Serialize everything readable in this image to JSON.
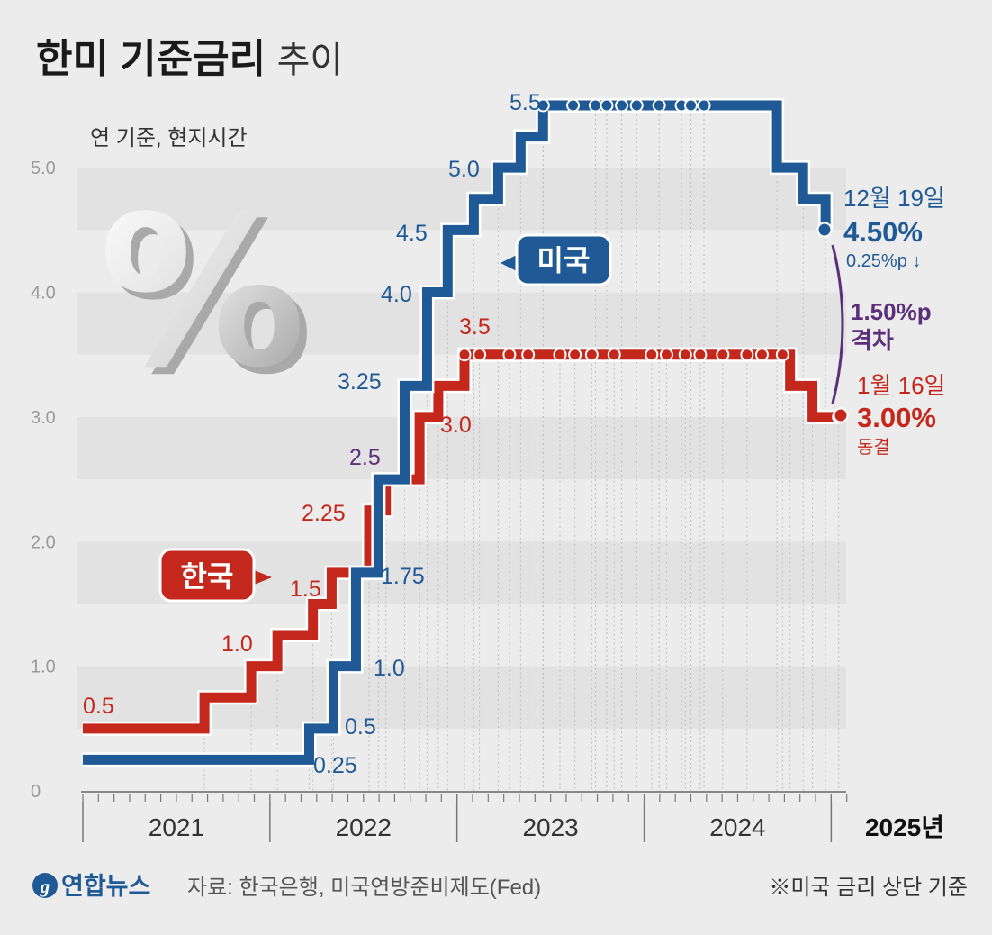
{
  "title": {
    "bold": "한미 기준금리",
    "light": "추이"
  },
  "subtitle": "연 기준, 현지시간",
  "percent_graphic": "%",
  "colors": {
    "us": "#1f5a96",
    "korea": "#c4281c",
    "gap": "#5b2f7a",
    "bg": "#ececec",
    "band": "#e2e2e2"
  },
  "chart_data": {
    "type": "line",
    "step": true,
    "title": "한미 기준금리 추이",
    "xlabel": "",
    "ylabel": "",
    "ylim": [
      0,
      5.5
    ],
    "xlim": [
      2021.0,
      2025.08
    ],
    "yticks": [
      "0",
      "1.0",
      "2.0",
      "3.0",
      "4.0",
      "5.0"
    ],
    "years": [
      "2021",
      "2022",
      "2023",
      "2024",
      "2025년"
    ],
    "series": [
      {
        "name": "미국",
        "label": "미국",
        "points": [
          [
            2021.0,
            0.25
          ],
          [
            2022.21,
            0.5
          ],
          [
            2022.34,
            1.0
          ],
          [
            2022.46,
            1.75
          ],
          [
            2022.58,
            2.5
          ],
          [
            2022.72,
            3.25
          ],
          [
            2022.84,
            4.0
          ],
          [
            2022.95,
            4.5
          ],
          [
            2023.09,
            4.75
          ],
          [
            2023.22,
            5.0
          ],
          [
            2023.34,
            5.25
          ],
          [
            2023.46,
            5.5
          ],
          [
            2024.71,
            5.0
          ],
          [
            2024.85,
            4.75
          ],
          [
            2024.97,
            4.5
          ]
        ],
        "markers": [
          2023.46,
          2023.62,
          2023.74,
          2023.8,
          2023.88,
          2023.96,
          2024.08,
          2024.2,
          2024.25,
          2024.32
        ],
        "labels": [
          "0.25",
          "0.5",
          "1.0",
          "1.75",
          "2.5",
          "3.25",
          "4.0",
          "4.5",
          "5.0",
          "5.5"
        ],
        "end": {
          "date": "12월 19일",
          "value": "4.50%",
          "change": "0.25%p ↓"
        }
      },
      {
        "name": "한국",
        "label": "한국",
        "points": [
          [
            2021.0,
            0.5
          ],
          [
            2021.65,
            0.75
          ],
          [
            2021.9,
            1.0
          ],
          [
            2022.04,
            1.25
          ],
          [
            2022.23,
            1.5
          ],
          [
            2022.33,
            1.75
          ],
          [
            2022.53,
            2.25
          ],
          [
            2022.62,
            2.5
          ],
          [
            2022.8,
            3.0
          ],
          [
            2022.9,
            3.25
          ],
          [
            2023.04,
            3.5
          ],
          [
            2024.78,
            3.25
          ],
          [
            2024.9,
            3.0
          ]
        ],
        "markers": [
          2023.04,
          2023.12,
          2023.28,
          2023.38,
          2023.55,
          2023.63,
          2023.72,
          2023.84,
          2024.04,
          2024.12,
          2024.22,
          2024.3,
          2024.42,
          2024.55,
          2024.63,
          2024.74,
          2025.04
        ],
        "labels": [
          "0.5",
          "1.0",
          "1.5",
          "2.25",
          "3.0",
          "3.5"
        ],
        "end": {
          "date": "1월 16일",
          "value": "3.00%",
          "change": "동결"
        }
      }
    ],
    "gap": {
      "value": "1.50%p",
      "label": "격차"
    }
  },
  "source": {
    "logo": "연합뉴스",
    "text": "자료: 한국은행, 미국연방준비제도(Fed)"
  },
  "note": "※미국 금리 상단 기준"
}
